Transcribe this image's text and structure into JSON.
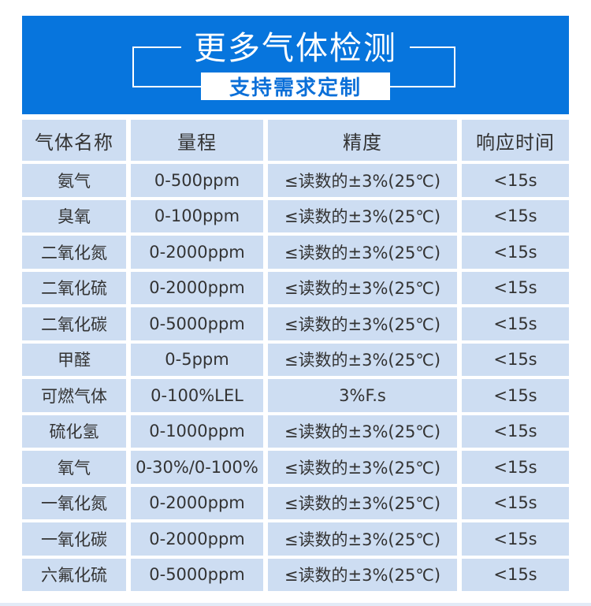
{
  "banner": {
    "title": "更多气体检测",
    "subtitle": "支持需求定制",
    "colors": {
      "banner_bg": "#0775dd",
      "title_text": "#ffffff",
      "subtitle_text": "#0b6fd8"
    }
  },
  "table": {
    "headers": [
      "气体名称",
      "量程",
      "精度",
      "响应时间"
    ],
    "rows": [
      [
        "氨气",
        "0-500ppm",
        "≤读数的±3%(25℃)",
        "<15s"
      ],
      [
        "臭氧",
        "0-100ppm",
        "≤读数的±3%(25℃)",
        "<15s"
      ],
      [
        "二氧化氮",
        "0-2000ppm",
        "≤读数的±3%(25℃)",
        "<15s"
      ],
      [
        "二氧化硫",
        "0-2000ppm",
        "≤读数的±3%(25℃)",
        "<15s"
      ],
      [
        "二氧化碳",
        "0-5000ppm",
        "≤读数的±3%(25℃)",
        "<15s"
      ],
      [
        "甲醛",
        "0-5ppm",
        "≤读数的±3%(25℃)",
        "<15s"
      ],
      [
        "可燃气体",
        "0-100%LEL",
        "3%F.s",
        "<15s"
      ],
      [
        "硫化氢",
        "0-1000ppm",
        "≤读数的±3%(25℃)",
        "<15s"
      ],
      [
        "氧气",
        "0-30%/0-100%",
        "≤读数的±3%(25℃)",
        "<15s"
      ],
      [
        "一氧化氮",
        "0-2000ppm",
        "≤读数的±3%(25℃)",
        "<15s"
      ],
      [
        "一氧化碳",
        "0-2000ppm",
        "≤读数的±3%(25℃)",
        "<15s"
      ],
      [
        "六氟化硫",
        "0-5000ppm",
        "≤读数的±3%(25℃)",
        "<15s"
      ]
    ],
    "colors": {
      "cell_bg": "#cdddf2",
      "text": "#333333",
      "grid_lines": "#ffffff"
    }
  },
  "footer": {
    "strip_color": "#e2ebf7"
  },
  "chart_data": {
    "type": "table",
    "title": "更多气体检测 支持需求定制",
    "columns": [
      "气体名称",
      "量程",
      "精度",
      "响应时间"
    ],
    "rows": [
      [
        "氨气",
        "0-500ppm",
        "≤读数的±3%(25℃)",
        "<15s"
      ],
      [
        "臭氧",
        "0-100ppm",
        "≤读数的±3%(25℃)",
        "<15s"
      ],
      [
        "二氧化氮",
        "0-2000ppm",
        "≤读数的±3%(25℃)",
        "<15s"
      ],
      [
        "二氧化硫",
        "0-2000ppm",
        "≤读数的±3%(25℃)",
        "<15s"
      ],
      [
        "二氧化碳",
        "0-5000ppm",
        "≤读数的±3%(25℃)",
        "<15s"
      ],
      [
        "甲醛",
        "0-5ppm",
        "≤读数的±3%(25℃)",
        "<15s"
      ],
      [
        "可燃气体",
        "0-100%LEL",
        "3%F.s",
        "<15s"
      ],
      [
        "硫化氢",
        "0-1000ppm",
        "≤读数的±3%(25℃)",
        "<15s"
      ],
      [
        "氧气",
        "0-30%/0-100%",
        "≤读数的±3%(25℃)",
        "<15s"
      ],
      [
        "一氧化氮",
        "0-2000ppm",
        "≤读数的±3%(25℃)",
        "<15s"
      ],
      [
        "一氧化碳",
        "0-2000ppm",
        "≤读数的±3%(25℃)",
        "<15s"
      ],
      [
        "六氟化硫",
        "0-5000ppm",
        "≤读数的±3%(25℃)",
        "<15s"
      ]
    ]
  }
}
